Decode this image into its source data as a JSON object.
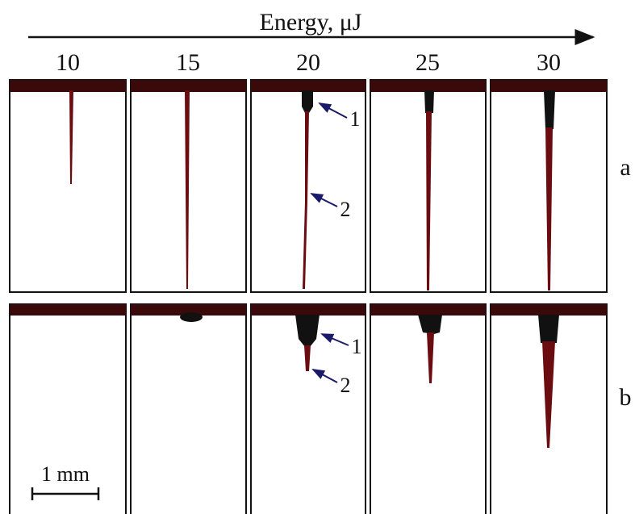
{
  "header": {
    "axis_label": "Energy, μJ"
  },
  "columns": [
    "10",
    "15",
    "20",
    "25",
    "30"
  ],
  "rows": [
    "a",
    "b"
  ],
  "annotations": {
    "row_a": [
      "1",
      "2"
    ],
    "row_b": [
      "1",
      "2"
    ]
  },
  "scale_bar": "1 mm"
}
